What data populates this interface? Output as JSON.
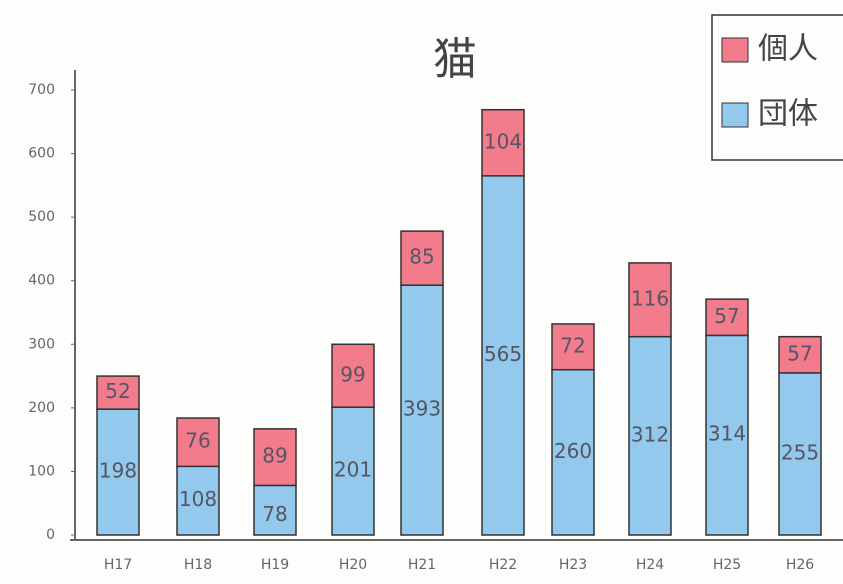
{
  "chart_data": {
    "type": "stacked_bar",
    "title": "猫",
    "categories": [
      "H17",
      "H18",
      "H19",
      "H20",
      "H21",
      "H22",
      "H23",
      "H24",
      "H25",
      "H26"
    ],
    "series": [
      {
        "name": "団体",
        "color": "#92c9ec",
        "values": [
          198,
          108,
          78,
          201,
          393,
          565,
          260,
          312,
          314,
          255
        ]
      },
      {
        "name": "個人",
        "color": "#f27c8c",
        "values": [
          52,
          76,
          89,
          99,
          85,
          104,
          72,
          116,
          57,
          57
        ]
      }
    ],
    "ylim": [
      0,
      700
    ],
    "yticks": [
      0,
      100,
      200,
      300,
      400,
      500,
      600,
      700
    ],
    "legend": "top-right",
    "grid": false
  }
}
